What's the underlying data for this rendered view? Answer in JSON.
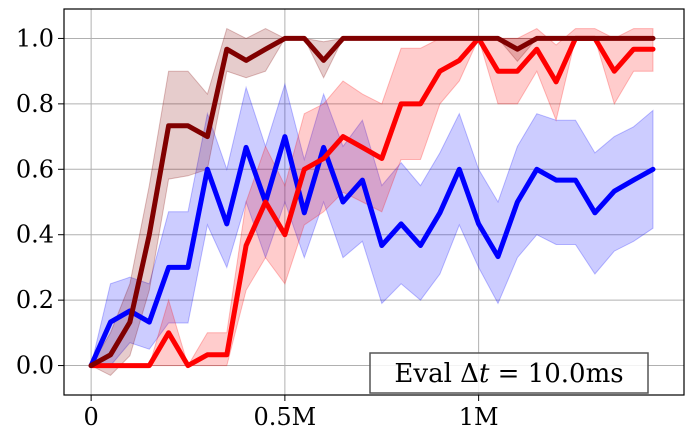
{
  "chart_data": {
    "type": "line",
    "xlim": [
      -70000,
      1530000
    ],
    "ylim": [
      -0.09,
      1.09
    ],
    "grid": true,
    "xticks": [
      {
        "value": 0,
        "label": "0"
      },
      {
        "value": 500000,
        "label": "0.5M"
      },
      {
        "value": 1000000,
        "label": "1M"
      }
    ],
    "yticks": [
      {
        "value": 0.0,
        "label": "0.0"
      },
      {
        "value": 0.2,
        "label": "0.2"
      },
      {
        "value": 0.4,
        "label": "0.4"
      },
      {
        "value": 0.6,
        "label": "0.6"
      },
      {
        "value": 0.8,
        "label": "0.8"
      },
      {
        "value": 1.0,
        "label": "1.0"
      }
    ],
    "annotation": {
      "prefix": "Eval ",
      "symbol": "Δ",
      "variable": "t",
      "suffix": " = 10.0ms",
      "placement": "bottom-right"
    },
    "x": [
      0,
      50000,
      100000,
      150000,
      200000,
      250000,
      300000,
      350000,
      400000,
      450000,
      500000,
      550000,
      600000,
      650000,
      700000,
      750000,
      800000,
      850000,
      900000,
      950000,
      1000000,
      1050000,
      1100000,
      1150000,
      1200000,
      1250000,
      1300000,
      1350000,
      1400000,
      1450000
    ],
    "series": [
      {
        "color": "#0000ff",
        "values": [
          0.0,
          0.133,
          0.167,
          0.133,
          0.3,
          0.3,
          0.6,
          0.433,
          0.667,
          0.5,
          0.7,
          0.467,
          0.667,
          0.5,
          0.567,
          0.367,
          0.433,
          0.367,
          0.467,
          0.6,
          0.433,
          0.333,
          0.5,
          0.6,
          0.567,
          0.567,
          0.467,
          0.533,
          0.567,
          0.6
        ],
        "lower": [
          0.0,
          0.0,
          0.07,
          0.05,
          0.13,
          0.13,
          0.43,
          0.3,
          0.5,
          0.33,
          0.5,
          0.33,
          0.5,
          0.33,
          0.38,
          0.19,
          0.25,
          0.2,
          0.28,
          0.43,
          0.3,
          0.19,
          0.33,
          0.4,
          0.37,
          0.37,
          0.28,
          0.35,
          0.38,
          0.42
        ],
        "upper": [
          0.0,
          0.25,
          0.27,
          0.25,
          0.47,
          0.47,
          0.77,
          0.6,
          0.85,
          0.67,
          0.86,
          0.63,
          0.83,
          0.67,
          0.75,
          0.55,
          0.62,
          0.55,
          0.65,
          0.77,
          0.6,
          0.5,
          0.67,
          0.77,
          0.75,
          0.75,
          0.65,
          0.7,
          0.73,
          0.78
        ]
      },
      {
        "color": "#ff0000",
        "values": [
          0.0,
          0.0,
          0.0,
          0.0,
          0.1,
          0.0,
          0.033,
          0.033,
          0.367,
          0.5,
          0.4,
          0.6,
          0.633,
          0.7,
          0.667,
          0.633,
          0.8,
          0.8,
          0.9,
          0.933,
          1.0,
          0.9,
          0.9,
          0.967,
          0.867,
          1.0,
          1.0,
          0.9,
          0.967,
          0.967
        ],
        "lower": [
          0.0,
          0.0,
          0.0,
          0.0,
          0.0,
          0.0,
          0.0,
          0.0,
          0.23,
          0.33,
          0.25,
          0.43,
          0.47,
          0.53,
          0.5,
          0.47,
          0.63,
          0.63,
          0.8,
          0.87,
          1.0,
          0.8,
          0.8,
          0.9,
          0.75,
          1.0,
          1.0,
          0.8,
          0.9,
          0.9
        ],
        "upper": [
          0.0,
          0.0,
          0.0,
          0.0,
          0.2,
          0.0,
          0.1,
          0.1,
          0.5,
          0.67,
          0.55,
          0.77,
          0.8,
          0.87,
          0.83,
          0.8,
          0.97,
          0.97,
          1.0,
          1.0,
          1.0,
          1.0,
          1.0,
          1.03,
          0.98,
          1.03,
          1.03,
          1.0,
          1.03,
          1.03
        ]
      },
      {
        "color": "#800000",
        "values": [
          0.0,
          0.033,
          0.133,
          0.4,
          0.733,
          0.733,
          0.7,
          0.967,
          0.933,
          0.967,
          1.0,
          1.0,
          0.933,
          1.0,
          1.0,
          1.0,
          1.0,
          1.0,
          1.0,
          1.0,
          1.0,
          1.0,
          0.967,
          1.0,
          1.0,
          1.0,
          1.0,
          1.0,
          1.0,
          1.0
        ],
        "lower": [
          0.0,
          -0.03,
          0.03,
          0.23,
          0.57,
          0.58,
          0.6,
          0.9,
          0.88,
          0.9,
          1.0,
          1.0,
          0.88,
          1.0,
          1.0,
          1.0,
          1.0,
          1.0,
          1.0,
          1.0,
          1.0,
          1.0,
          0.93,
          1.0,
          1.0,
          1.0,
          1.0,
          1.0,
          1.0,
          1.0
        ],
        "upper": [
          0.0,
          0.1,
          0.25,
          0.55,
          0.9,
          0.9,
          0.83,
          1.03,
          1.0,
          1.03,
          1.0,
          1.0,
          0.99,
          1.0,
          1.0,
          1.0,
          1.0,
          1.0,
          1.0,
          1.0,
          1.0,
          1.0,
          1.0,
          1.0,
          1.0,
          1.0,
          1.0,
          1.0,
          1.0,
          1.0
        ]
      }
    ]
  }
}
